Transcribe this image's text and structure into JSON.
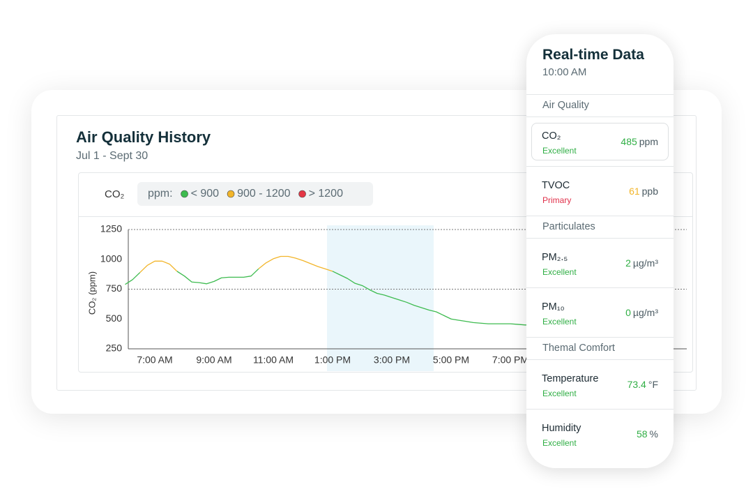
{
  "history": {
    "title": "Air Quality History",
    "subtitle": "Jul 1 - Sept 30",
    "metric": "CO₂",
    "unit_label": "ppm:"
  },
  "chart_data": {
    "type": "line",
    "y_label": "CO₂ (ppm)",
    "categories": [
      null,
      null,
      null,
      null,
      "7:00 AM",
      null,
      null,
      null,
      null,
      null,
      null,
      null,
      "9:00 AM",
      null,
      null,
      null,
      null,
      null,
      null,
      null,
      "11:00 AM",
      null,
      null,
      null,
      null,
      null,
      null,
      null,
      "1:00 PM",
      null,
      null,
      null,
      null,
      null,
      null,
      null,
      "3:00 PM",
      null,
      null,
      null,
      null,
      null,
      null,
      null,
      "5:00 PM",
      null,
      null,
      null,
      null,
      null,
      null,
      null,
      "7:00 PM",
      null,
      null,
      null
    ],
    "values": [
      790,
      830,
      890,
      950,
      985,
      985,
      960,
      900,
      860,
      810,
      805,
      795,
      815,
      845,
      850,
      850,
      850,
      860,
      920,
      970,
      1005,
      1025,
      1025,
      1010,
      990,
      965,
      940,
      920,
      900,
      870,
      840,
      800,
      780,
      745,
      715,
      700,
      680,
      660,
      640,
      615,
      595,
      575,
      560,
      530,
      500,
      490,
      480,
      470,
      465,
      460,
      460,
      460,
      460,
      455,
      450,
      450
    ],
    "ylim": [
      250,
      1250
    ],
    "yticks": [
      250,
      500,
      750,
      1000,
      1250
    ],
    "reference_lines": [
      750,
      1250
    ],
    "bands": [
      {
        "name": "< 900",
        "color": "#3dbb4f",
        "max": 900
      },
      {
        "name": "900 - 1200",
        "color": "#f2b52a",
        "min": 900,
        "max": 1200
      },
      {
        "name": "> 1200",
        "color": "#e43645",
        "min": 1200
      }
    ]
  },
  "realtime": {
    "title": "Real-time Data",
    "time": "10:00 AM",
    "sections": [
      {
        "heading": "Air Quality",
        "items": [
          {
            "name": "CO₂",
            "status": "Excellent",
            "status_color": "#2fae44",
            "value": 485,
            "unit": "ppm",
            "value_color": "#2fae44",
            "selected": true
          },
          {
            "name": "TVOC",
            "status": "Primary",
            "status_color": "#e0304a",
            "value": 61,
            "unit": "ppb",
            "value_color": "#f2b52a"
          }
        ]
      },
      {
        "heading": "Particulates",
        "items": [
          {
            "name": "PM₂.₅",
            "status": "Excellent",
            "status_color": "#2fae44",
            "value": 2,
            "unit": "µg/m³",
            "value_color": "#2fae44"
          },
          {
            "name": "PM₁₀",
            "status": "Excellent",
            "status_color": "#2fae44",
            "value": 0,
            "unit": "µg/m³",
            "value_color": "#2fae44"
          }
        ]
      },
      {
        "heading": "Themal Comfort",
        "items": [
          {
            "name": "Temperature",
            "status": "Excellent",
            "status_color": "#2fae44",
            "value": 73.4,
            "unit": "°F",
            "value_color": "#2fae44"
          },
          {
            "name": "Humidity",
            "status": "Excellent",
            "status_color": "#2fae44",
            "value": 58,
            "unit": "%",
            "value_color": "#2fae44"
          }
        ]
      }
    ]
  }
}
